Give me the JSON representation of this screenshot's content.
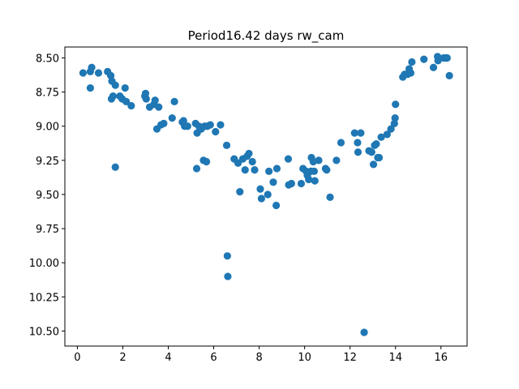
{
  "chart_data": {
    "type": "scatter",
    "title": "Period16.42 days rw_cam",
    "xlabel": "",
    "ylabel": "",
    "xlim": [
      -0.55,
      17.15
    ],
    "ylim": [
      10.61,
      8.42
    ],
    "y_inverted": true,
    "grid": false,
    "marker_color": "#1f77b4",
    "xticks": [
      0,
      2,
      4,
      6,
      8,
      10,
      12,
      14,
      16
    ],
    "xtick_labels": [
      "0",
      "2",
      "4",
      "6",
      "8",
      "10",
      "12",
      "14",
      "16"
    ],
    "yticks": [
      8.5,
      8.75,
      9.0,
      9.25,
      9.5,
      9.75,
      10.0,
      10.25,
      10.5
    ],
    "ytick_labels": [
      "8.50",
      "8.75",
      "9.00",
      "9.25",
      "9.50",
      "9.75",
      "10.00",
      "10.25",
      "10.50"
    ],
    "series": [
      {
        "points": [
          [
            0.25,
            8.61
          ],
          [
            0.57,
            8.6
          ],
          [
            0.63,
            8.57
          ],
          [
            0.57,
            8.72
          ],
          [
            0.93,
            8.61
          ],
          [
            1.33,
            8.6
          ],
          [
            1.47,
            8.63
          ],
          [
            1.52,
            8.67
          ],
          [
            1.5,
            8.8
          ],
          [
            1.57,
            8.78
          ],
          [
            1.67,
            8.7
          ],
          [
            1.67,
            9.3
          ],
          [
            1.87,
            8.78
          ],
          [
            1.97,
            8.8
          ],
          [
            2.1,
            8.72
          ],
          [
            2.15,
            8.82
          ],
          [
            2.37,
            8.85
          ],
          [
            2.97,
            8.78
          ],
          [
            3.0,
            8.76
          ],
          [
            3.03,
            8.8
          ],
          [
            3.18,
            8.86
          ],
          [
            3.37,
            8.84
          ],
          [
            3.42,
            8.81
          ],
          [
            3.5,
            9.02
          ],
          [
            3.58,
            8.86
          ],
          [
            3.68,
            8.99
          ],
          [
            3.8,
            8.98
          ],
          [
            4.17,
            8.94
          ],
          [
            4.27,
            8.82
          ],
          [
            4.62,
            8.97
          ],
          [
            4.67,
            8.96
          ],
          [
            4.72,
            9.0
          ],
          [
            4.85,
            9.0
          ],
          [
            5.2,
            8.98
          ],
          [
            5.25,
            9.31
          ],
          [
            5.27,
            9.05
          ],
          [
            5.35,
            9.0
          ],
          [
            5.45,
            9.02
          ],
          [
            5.55,
            9.25
          ],
          [
            5.6,
            9.0
          ],
          [
            5.68,
            9.26
          ],
          [
            5.72,
            9.0
          ],
          [
            5.85,
            8.99
          ],
          [
            6.08,
            9.04
          ],
          [
            6.3,
            8.99
          ],
          [
            6.57,
            9.14
          ],
          [
            6.6,
            9.95
          ],
          [
            6.62,
            10.1
          ],
          [
            6.9,
            9.24
          ],
          [
            7.07,
            9.27
          ],
          [
            7.15,
            9.48
          ],
          [
            7.28,
            9.24
          ],
          [
            7.38,
            9.32
          ],
          [
            7.47,
            9.22
          ],
          [
            7.55,
            9.2
          ],
          [
            7.7,
            9.26
          ],
          [
            7.8,
            9.32
          ],
          [
            8.05,
            9.46
          ],
          [
            8.1,
            9.53
          ],
          [
            8.38,
            9.5
          ],
          [
            8.43,
            9.33
          ],
          [
            8.62,
            9.41
          ],
          [
            8.75,
            9.58
          ],
          [
            8.78,
            9.31
          ],
          [
            9.28,
            9.24
          ],
          [
            9.3,
            9.43
          ],
          [
            9.42,
            9.42
          ],
          [
            9.85,
            9.42
          ],
          [
            9.93,
            9.31
          ],
          [
            10.07,
            9.33
          ],
          [
            10.12,
            9.36
          ],
          [
            10.18,
            9.39
          ],
          [
            10.28,
            9.33
          ],
          [
            10.3,
            9.23
          ],
          [
            10.38,
            9.26
          ],
          [
            10.42,
            9.33
          ],
          [
            10.45,
            9.4
          ],
          [
            10.62,
            9.25
          ],
          [
            10.92,
            9.31
          ],
          [
            10.97,
            9.32
          ],
          [
            11.12,
            9.52
          ],
          [
            11.4,
            9.25
          ],
          [
            11.6,
            9.12
          ],
          [
            12.2,
            9.05
          ],
          [
            12.33,
            9.12
          ],
          [
            12.35,
            9.19
          ],
          [
            12.47,
            9.05
          ],
          [
            12.62,
            10.51
          ],
          [
            12.83,
            9.18
          ],
          [
            12.95,
            9.19
          ],
          [
            13.03,
            9.28
          ],
          [
            13.08,
            9.14
          ],
          [
            13.15,
            9.13
          ],
          [
            13.22,
            9.23
          ],
          [
            13.28,
            9.23
          ],
          [
            13.37,
            9.08
          ],
          [
            13.63,
            9.06
          ],
          [
            13.8,
            9.02
          ],
          [
            13.95,
            8.98
          ],
          [
            13.98,
            8.94
          ],
          [
            14.0,
            8.84
          ],
          [
            14.32,
            8.64
          ],
          [
            14.4,
            8.62
          ],
          [
            14.53,
            8.62
          ],
          [
            14.6,
            8.58
          ],
          [
            14.67,
            8.61
          ],
          [
            14.72,
            8.53
          ],
          [
            15.25,
            8.51
          ],
          [
            15.67,
            8.57
          ],
          [
            15.85,
            8.49
          ],
          [
            15.87,
            8.52
          ],
          [
            16.12,
            8.5
          ],
          [
            16.2,
            8.5
          ],
          [
            16.27,
            8.5
          ],
          [
            16.37,
            8.63
          ]
        ]
      }
    ]
  }
}
